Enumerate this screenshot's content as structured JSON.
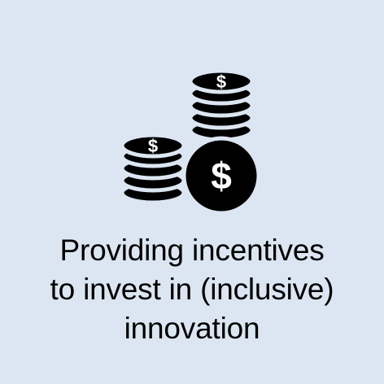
{
  "caption": {
    "line1": "Providing incentives",
    "line2": "to invest in (inclusive)",
    "line3": "innovation"
  },
  "icon": {
    "name": "coin-stacks-dollar-icon",
    "symbol": "$"
  },
  "colors": {
    "background": "#dce6f2",
    "ink": "#000000"
  }
}
